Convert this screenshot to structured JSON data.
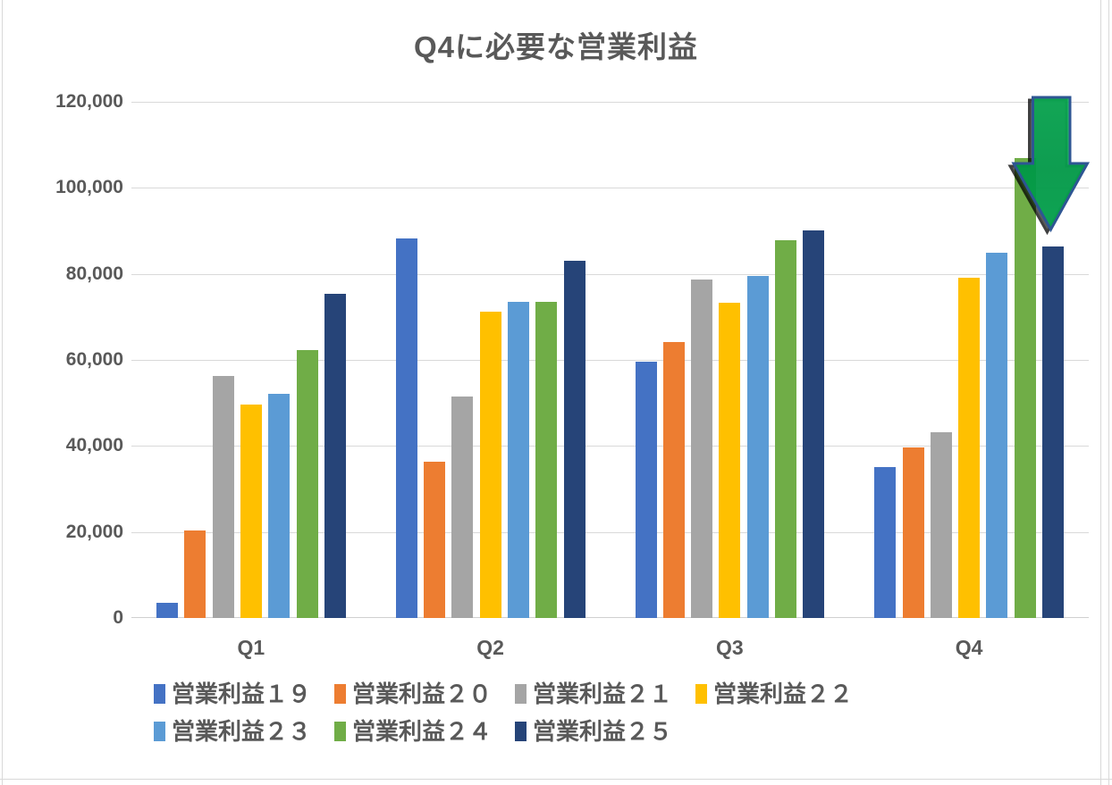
{
  "chart_data": {
    "type": "bar",
    "title": "Q4に必要な営業利益",
    "categories": [
      "Q1",
      "Q2",
      "Q3",
      "Q4"
    ],
    "series": [
      {
        "name": "営業利益１９",
        "color": "#4472C4",
        "values": [
          3500,
          88300,
          59600,
          35000
        ]
      },
      {
        "name": "営業利益２０",
        "color": "#ED7D31",
        "values": [
          20400,
          36300,
          64100,
          39700
        ]
      },
      {
        "name": "営業利益２１",
        "color": "#A5A5A5",
        "values": [
          56300,
          51600,
          78700,
          43200
        ]
      },
      {
        "name": "営業利益２２",
        "color": "#FFC000",
        "values": [
          49700,
          71300,
          73400,
          79200
        ]
      },
      {
        "name": "営業利益２３",
        "color": "#5B9BD5",
        "values": [
          52200,
          73500,
          79500,
          85000
        ]
      },
      {
        "name": "営業利益２４",
        "color": "#70AD47",
        "values": [
          62300,
          73500,
          87800,
          106900
        ]
      },
      {
        "name": "営業利益２５",
        "color": "#264478",
        "values": [
          75300,
          83100,
          90100,
          86400
        ]
      }
    ],
    "y_axis": {
      "min": 0,
      "max": 120000,
      "step": 20000,
      "tick_labels": [
        "0",
        "20,000",
        "40,000",
        "60,000",
        "80,000",
        "100,000",
        "120,000"
      ]
    },
    "grid": true,
    "legend_position": "bottom",
    "annotation": {
      "shape": "down-arrow",
      "fill_color": "#00AC50",
      "outline_color": "#2E5693",
      "points_at": "Q4 営業利益２５"
    },
    "colors": {
      "text": "#595959",
      "gridline": "#D9D9D9",
      "background": "#FFFFFF"
    }
  }
}
